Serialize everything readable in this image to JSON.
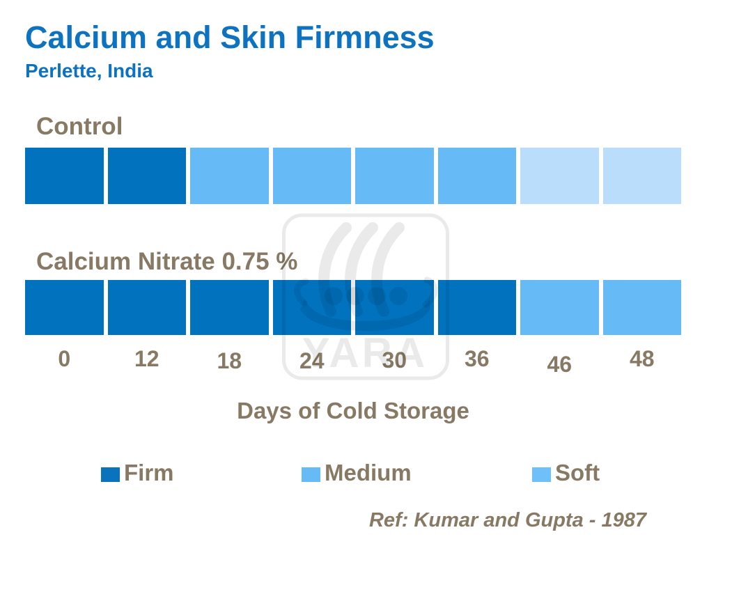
{
  "header": {
    "title": "Calcium and Skin Firmness",
    "subtitle": "Perlette,  India"
  },
  "chart_data": {
    "type": "bar",
    "title": "Calcium and Skin Firmness",
    "subtitle": "Perlette, India",
    "xlabel": "Days of Cold Storage",
    "categories": [
      "0",
      "12",
      "18",
      "24",
      "30",
      "36",
      "46",
      "48"
    ],
    "series": [
      {
        "name": "Control",
        "firmness": [
          "Firm",
          "Firm",
          "Medium",
          "Medium",
          "Medium",
          "Medium",
          "Soft",
          "Soft"
        ]
      },
      {
        "name": "Calcium Nitrate 0.75 %",
        "firmness": [
          "Firm",
          "Firm",
          "Firm",
          "Firm",
          "Firm",
          "Firm",
          "Medium",
          "Medium"
        ]
      }
    ],
    "legend_position": "bottom",
    "grid": false
  },
  "legend": {
    "items": [
      {
        "label": "Firm",
        "swatch": "#0b72bc"
      },
      {
        "label": "Medium",
        "swatch": "#66bbf7"
      },
      {
        "label": "Soft",
        "swatch": "#6fc0fa"
      }
    ]
  },
  "colors": {
    "firm": "#0072be",
    "medium": "#66bbf7",
    "soft": "#b9ddfb",
    "title_blue": "#0d72bf",
    "label_brown": "#877963"
  },
  "watermark": {
    "text": "YARA"
  },
  "footer": {
    "reference": "Ref: Kumar and Gupta - 1987"
  }
}
